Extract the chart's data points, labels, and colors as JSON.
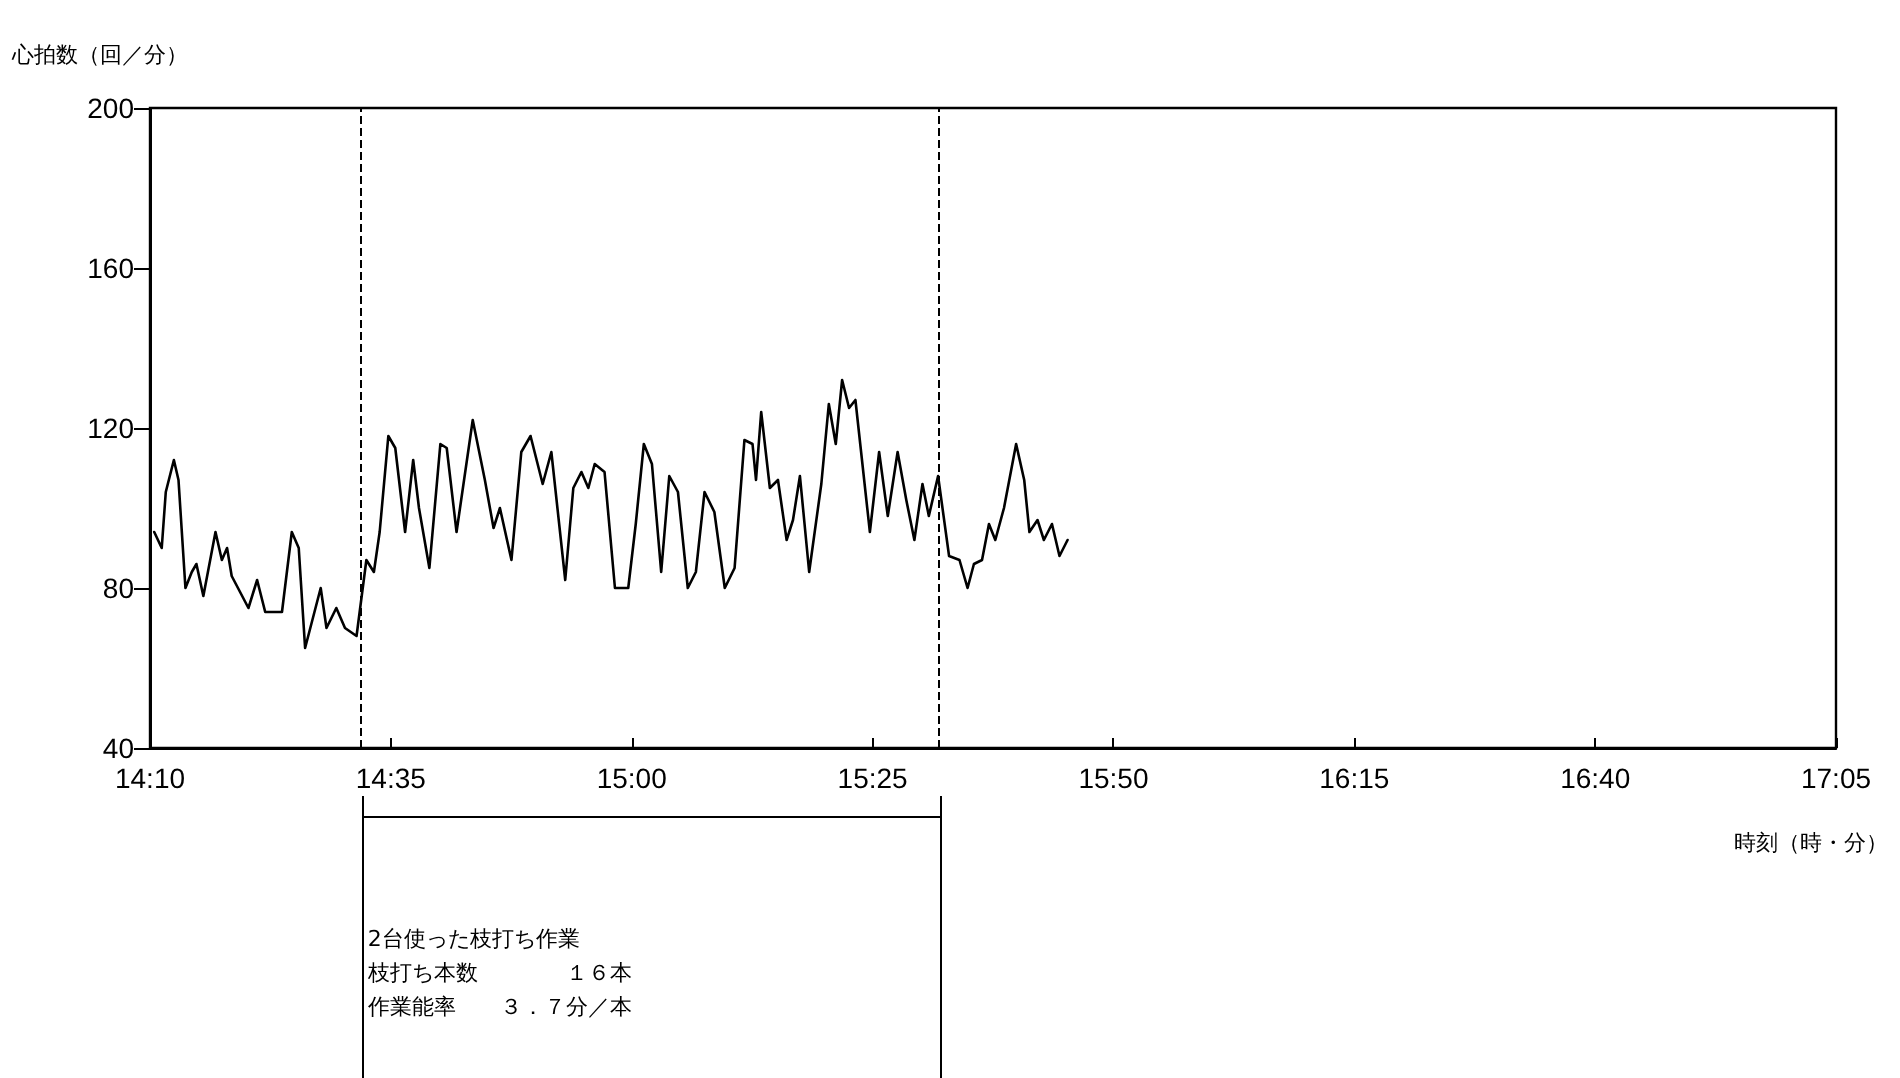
{
  "chart_data": {
    "type": "line",
    "ylabel": "心拍数（回／分）",
    "xlabel": "時刻（時・分）",
    "xlim": [
      14.1667,
      17.0833
    ],
    "xticks": [
      {
        "value": 14.1667,
        "label": "14:10"
      },
      {
        "value": 14.5833,
        "label": "14:35"
      },
      {
        "value": 15,
        "label": "15:00"
      },
      {
        "value": 15.4167,
        "label": "15:25"
      },
      {
        "value": 15.8333,
        "label": "15:50"
      },
      {
        "value": 16.25,
        "label": "16:15"
      },
      {
        "value": 16.6667,
        "label": "16:40"
      },
      {
        "value": 17.0833,
        "label": "17:05"
      }
    ],
    "ylim": [
      40,
      200
    ],
    "yticks": [
      40,
      80,
      120,
      160,
      200
    ],
    "grid": false,
    "marker": "none",
    "line_style": "solid",
    "ref_lines": [
      {
        "axis": "x",
        "value": 14.533,
        "color": "#000000",
        "line_style": "dashed"
      },
      {
        "axis": "x",
        "value": 15.53,
        "color": "#000000",
        "line_style": "dashed"
      }
    ],
    "annotations": [
      "2台使った枝打ち作業",
      "枝打ち本数　　　　１６本",
      "作業能率　　３．７分／本"
    ],
    "series": [
      {
        "color": "#000000",
        "x": [
          14.174,
          14.187,
          14.194,
          14.208,
          14.216,
          14.228,
          14.239,
          14.247,
          14.259,
          14.28,
          14.291,
          14.3,
          14.308,
          14.337,
          14.352,
          14.366,
          14.395,
          14.412,
          14.424,
          14.435,
          14.462,
          14.472,
          14.489,
          14.504,
          14.524,
          14.541,
          14.554,
          14.564,
          14.579,
          14.591,
          14.608,
          14.622,
          14.632,
          14.65,
          14.669,
          14.68,
          14.697,
          14.725,
          14.746,
          14.761,
          14.772,
          14.792,
          14.809,
          14.825,
          14.846,
          14.861,
          14.885,
          14.899,
          14.913,
          14.925,
          14.936,
          14.953,
          14.971,
          14.994,
          15.007,
          15.021,
          15.035,
          15.051,
          15.065,
          15.08,
          15.097,
          15.111,
          15.126,
          15.143,
          15.161,
          15.178,
          15.195,
          15.209,
          15.215,
          15.224,
          15.239,
          15.253,
          15.268,
          15.279,
          15.291,
          15.307,
          15.328,
          15.341,
          15.353,
          15.364,
          15.376,
          15.387,
          15.412,
          15.428,
          15.443,
          15.46,
          15.475,
          15.489,
          15.503,
          15.514,
          15.53,
          15.549,
          15.567,
          15.581,
          15.592,
          15.606,
          15.618,
          15.629,
          15.644,
          15.665,
          15.679,
          15.688,
          15.702,
          15.713,
          15.727,
          15.74,
          15.754
        ],
        "values": [
          94,
          90,
          104,
          112,
          107,
          80,
          84,
          86,
          78,
          94,
          87,
          90,
          83,
          75,
          82,
          74,
          74,
          94,
          90,
          65,
          80,
          70,
          75,
          70,
          68,
          87,
          84,
          94,
          118,
          115,
          94,
          112,
          100,
          85,
          116,
          115,
          94,
          122,
          107,
          95,
          100,
          87,
          114,
          118,
          106,
          114,
          82,
          105,
          109,
          105,
          111,
          109,
          80,
          80,
          96,
          116,
          111,
          84,
          108,
          104,
          80,
          84,
          104,
          99,
          80,
          85,
          117,
          116,
          107,
          124,
          105,
          107,
          92,
          97,
          108,
          84,
          106,
          126,
          116,
          132,
          125,
          127,
          94,
          114,
          98,
          114,
          102,
          92,
          106,
          98,
          108,
          88,
          87,
          80,
          86,
          87,
          96,
          92,
          100,
          116,
          107,
          94,
          97,
          92,
          96,
          88,
          92
        ]
      }
    ]
  }
}
